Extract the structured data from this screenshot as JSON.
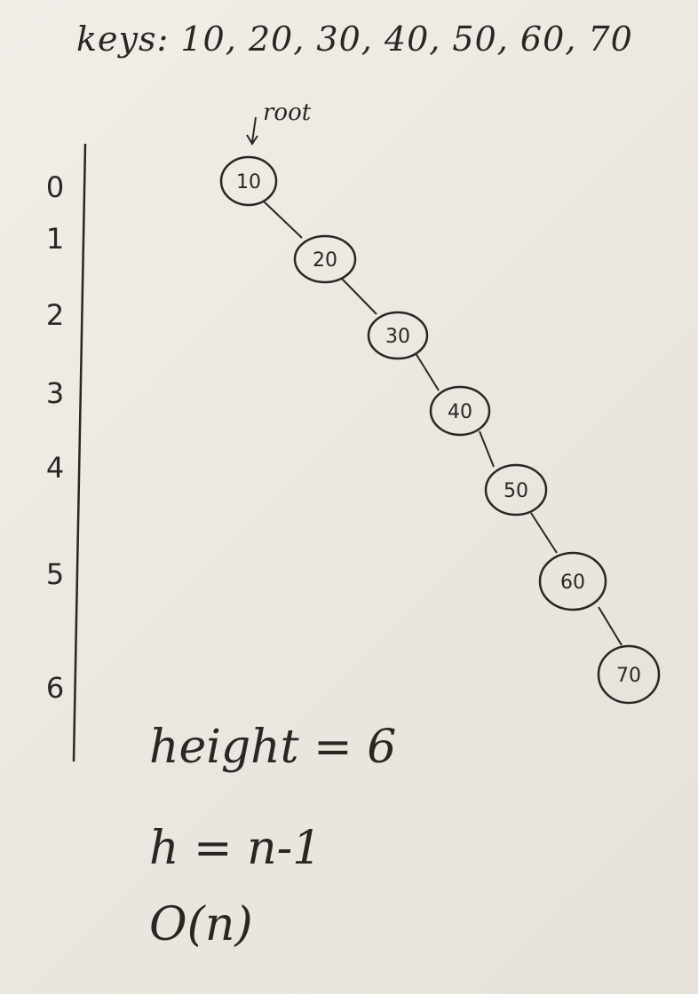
{
  "header": {
    "keys_text": "keys: 10, 20, 30, 40, 50, 60, 70"
  },
  "root_label": "root",
  "levels": [
    "0",
    "1",
    "2",
    "3",
    "4",
    "5",
    "6"
  ],
  "nodes": [
    "10",
    "20",
    "30",
    "40",
    "50",
    "60",
    "70"
  ],
  "notes": {
    "height": "height = 6",
    "formula": "h = n-1",
    "complexity": "O(n)"
  }
}
